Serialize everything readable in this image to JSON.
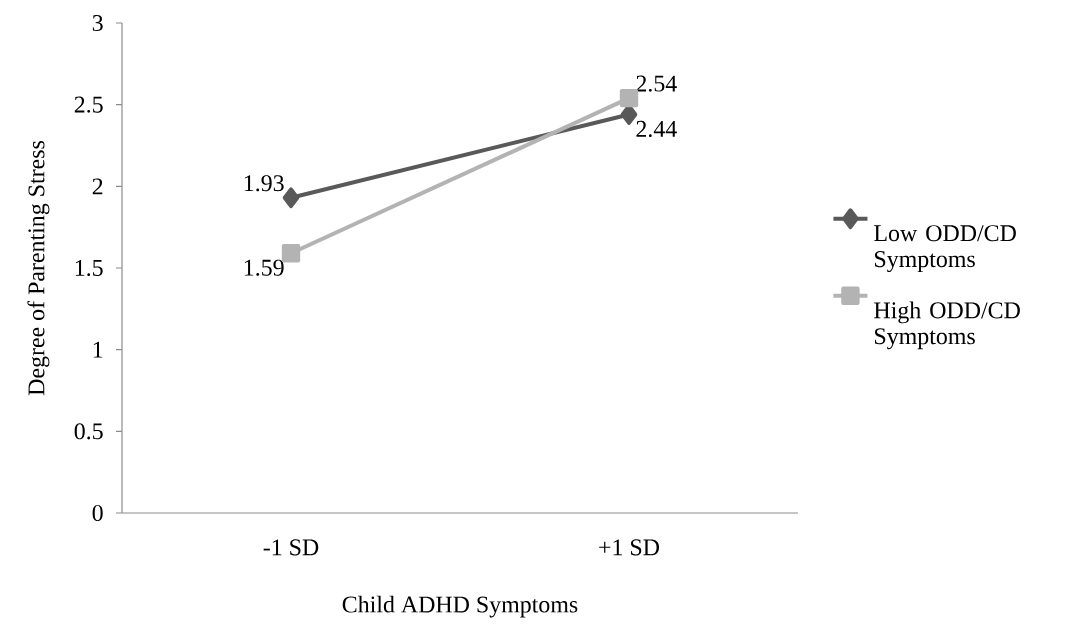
{
  "chart_data": {
    "type": "line",
    "xlabel": "Child ADHD Symptoms",
    "ylabel": "Degree of Parenting Stress",
    "categories": [
      "-1 SD",
      "+1 SD"
    ],
    "series": [
      {
        "name": "Low ODD/CD Symptoms",
        "color": "#595959",
        "values": [
          1.93,
          2.44
        ],
        "marker": "diamond"
      },
      {
        "name": "High ODD/CD Symptoms",
        "color": "#b3b3b3",
        "values": [
          1.59,
          2.54
        ],
        "marker": "square"
      }
    ],
    "ylim": [
      0,
      3
    ],
    "yticks": [
      0,
      0.5,
      1,
      1.5,
      2,
      2.5,
      3
    ],
    "legend": "right",
    "data_labels": true,
    "grid": false
  }
}
